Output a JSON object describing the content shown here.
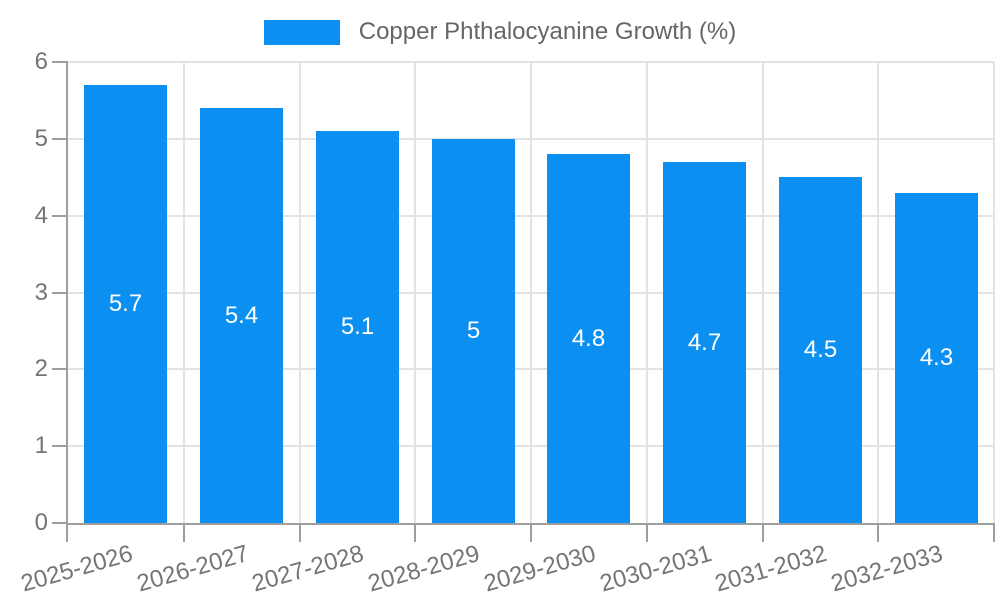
{
  "chart_data": {
    "type": "bar",
    "title": "Copper Phthalocyanine Growth (%)",
    "series_name": "Copper Phthalocyanine Growth (%)",
    "categories": [
      "2025-2026",
      "2026-2027",
      "2027-2028",
      "2028-2029",
      "2029-2030",
      "2030-2031",
      "2031-2032",
      "2032-2033"
    ],
    "values": [
      5.7,
      5.4,
      5.1,
      5,
      4.8,
      4.7,
      4.5,
      4.3
    ],
    "bar_labels": [
      "5.7",
      "5.4",
      "5.1",
      "5",
      "4.8",
      "4.7",
      "4.5",
      "4.3"
    ],
    "xlabel": "",
    "ylabel": "",
    "ylim": [
      0,
      6
    ],
    "yticks": [
      0,
      1,
      2,
      3,
      4,
      5,
      6
    ],
    "grid": true,
    "legend_position": "top",
    "x_label_rotation_deg": -16,
    "colors": {
      "bar": "#0b90f2",
      "bar_label": "#ffffff",
      "legend_text": "#666666",
      "axis_label": "#757575",
      "gridline": "#e3e3e3",
      "axis_line": "#9e9e9e",
      "background": "#ffffff"
    }
  }
}
